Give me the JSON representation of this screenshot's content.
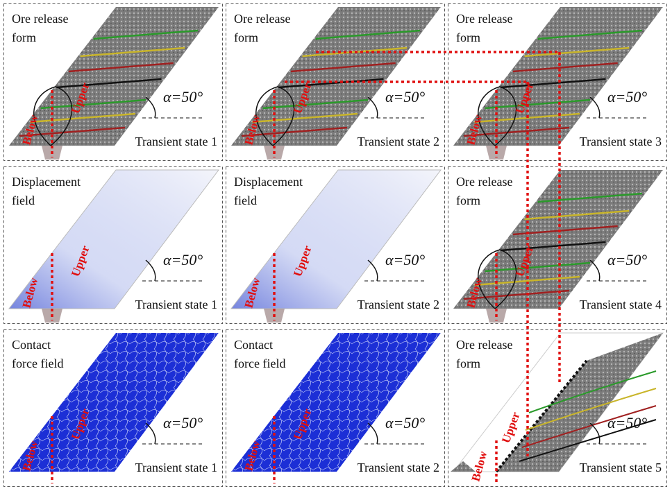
{
  "panels": [
    {
      "title": [
        "Ore release",
        "form"
      ],
      "angle": "α=50°",
      "state": "Transient state 1",
      "below": "Below",
      "upper": "Upper"
    },
    {
      "title": [
        "Ore release",
        "form"
      ],
      "angle": "α=50°",
      "state": "Transient state 2",
      "below": "Below",
      "upper": "Upper"
    },
    {
      "title": [
        "Ore release",
        "form"
      ],
      "angle": "α=50°",
      "state": "Transient state 3",
      "below": "Below",
      "upper": "Upper"
    },
    {
      "title": [
        "Displacement",
        "field"
      ],
      "angle": "α=50°",
      "state": "Transient state 1",
      "below": "Below",
      "upper": "Upper"
    },
    {
      "title": [
        "Displacement",
        "field"
      ],
      "angle": "α=50°",
      "state": "Transient state 2",
      "below": "Below",
      "upper": "Upper"
    },
    {
      "title": [
        "Ore release",
        "form"
      ],
      "angle": "α=50°",
      "state": "Transient state 4",
      "below": "Below",
      "upper": "Upper"
    },
    {
      "title": [
        "Contact",
        "force field"
      ],
      "angle": "α=50°",
      "state": "Transient state 1",
      "below": "Below",
      "upper": "Upper"
    },
    {
      "title": [
        "Contact",
        "force field"
      ],
      "angle": "α=50°",
      "state": "Transient state 2",
      "below": "Below",
      "upper": "Upper"
    },
    {
      "title": [
        "Ore release",
        "form"
      ],
      "angle": "α=50°",
      "state": "Transient state 5",
      "below": "Below",
      "upper": "Upper"
    }
  ]
}
